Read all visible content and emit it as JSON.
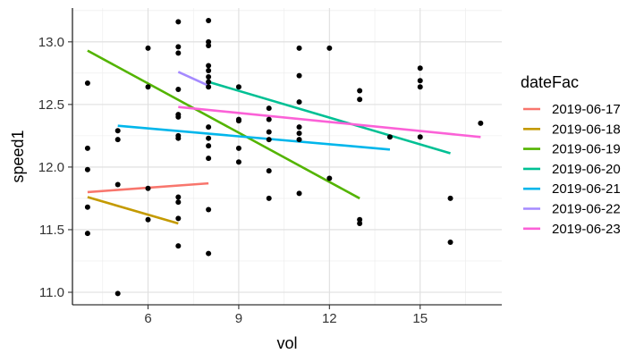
{
  "chart_data": {
    "type": "scatter",
    "xlabel": "vol",
    "ylabel": "speed1",
    "xlim": [
      3.5,
      17.7
    ],
    "ylim": [
      10.9,
      13.27
    ],
    "x_ticks": [
      6,
      9,
      12,
      15
    ],
    "y_ticks": [
      11.0,
      11.5,
      12.0,
      12.5,
      13.0
    ],
    "y_tick_labels": [
      "11.0",
      "11.5",
      "12.0",
      "12.5",
      "13.0"
    ],
    "grid": true,
    "legend": {
      "title": "dateFac",
      "position": "right"
    },
    "points": [
      {
        "x": 4,
        "y": 12.67
      },
      {
        "x": 4,
        "y": 12.15
      },
      {
        "x": 4,
        "y": 11.98
      },
      {
        "x": 4,
        "y": 11.68
      },
      {
        "x": 4,
        "y": 11.47
      },
      {
        "x": 5,
        "y": 12.29
      },
      {
        "x": 5,
        "y": 12.22
      },
      {
        "x": 5,
        "y": 11.86
      },
      {
        "x": 5,
        "y": 10.99
      },
      {
        "x": 6,
        "y": 12.95
      },
      {
        "x": 6,
        "y": 12.64
      },
      {
        "x": 6,
        "y": 11.83
      },
      {
        "x": 6,
        "y": 11.58
      },
      {
        "x": 7,
        "y": 13.16
      },
      {
        "x": 7,
        "y": 12.96
      },
      {
        "x": 7,
        "y": 12.91
      },
      {
        "x": 7,
        "y": 12.62
      },
      {
        "x": 7,
        "y": 12.42
      },
      {
        "x": 7,
        "y": 12.4
      },
      {
        "x": 7,
        "y": 12.25
      },
      {
        "x": 7,
        "y": 12.23
      },
      {
        "x": 7,
        "y": 11.76
      },
      {
        "x": 7,
        "y": 11.72
      },
      {
        "x": 7,
        "y": 11.59
      },
      {
        "x": 7,
        "y": 11.37
      },
      {
        "x": 8,
        "y": 13.17
      },
      {
        "x": 8,
        "y": 13.0
      },
      {
        "x": 8,
        "y": 12.97
      },
      {
        "x": 8,
        "y": 12.81
      },
      {
        "x": 8,
        "y": 12.77
      },
      {
        "x": 8,
        "y": 12.72
      },
      {
        "x": 8,
        "y": 12.68
      },
      {
        "x": 8,
        "y": 12.64
      },
      {
        "x": 8,
        "y": 12.32
      },
      {
        "x": 8,
        "y": 12.23
      },
      {
        "x": 8,
        "y": 12.17
      },
      {
        "x": 8,
        "y": 12.07
      },
      {
        "x": 8,
        "y": 11.66
      },
      {
        "x": 8,
        "y": 11.31
      },
      {
        "x": 9,
        "y": 12.64
      },
      {
        "x": 9,
        "y": 12.38
      },
      {
        "x": 9,
        "y": 12.37
      },
      {
        "x": 9,
        "y": 12.15
      },
      {
        "x": 9,
        "y": 12.04
      },
      {
        "x": 10,
        "y": 12.47
      },
      {
        "x": 10,
        "y": 12.38
      },
      {
        "x": 10,
        "y": 12.28
      },
      {
        "x": 10,
        "y": 12.22
      },
      {
        "x": 10,
        "y": 11.97
      },
      {
        "x": 10,
        "y": 11.75
      },
      {
        "x": 11,
        "y": 12.95
      },
      {
        "x": 11,
        "y": 12.73
      },
      {
        "x": 11,
        "y": 12.52
      },
      {
        "x": 11,
        "y": 12.32
      },
      {
        "x": 11,
        "y": 12.27
      },
      {
        "x": 11,
        "y": 12.22
      },
      {
        "x": 11,
        "y": 11.79
      },
      {
        "x": 12,
        "y": 12.95
      },
      {
        "x": 12,
        "y": 11.91
      },
      {
        "x": 13,
        "y": 12.61
      },
      {
        "x": 13,
        "y": 12.54
      },
      {
        "x": 13,
        "y": 11.58
      },
      {
        "x": 13,
        "y": 11.55
      },
      {
        "x": 14,
        "y": 12.24
      },
      {
        "x": 15,
        "y": 12.79
      },
      {
        "x": 15,
        "y": 12.69
      },
      {
        "x": 15,
        "y": 12.64
      },
      {
        "x": 15,
        "y": 12.24
      },
      {
        "x": 16,
        "y": 11.75
      },
      {
        "x": 16,
        "y": 11.4
      },
      {
        "x": 17,
        "y": 12.35
      }
    ],
    "series": [
      {
        "name": "2019-06-17",
        "color": "#F8766D",
        "x": [
          4,
          8
        ],
        "y": [
          11.8,
          11.87
        ]
      },
      {
        "name": "2019-06-18",
        "color": "#C49A00",
        "x": [
          4,
          7
        ],
        "y": [
          11.76,
          11.55
        ]
      },
      {
        "name": "2019-06-19",
        "color": "#53B400",
        "x": [
          4,
          13
        ],
        "y": [
          12.93,
          11.75
        ]
      },
      {
        "name": "2019-06-20",
        "color": "#00C094",
        "x": [
          8,
          16
        ],
        "y": [
          12.68,
          12.11
        ]
      },
      {
        "name": "2019-06-21",
        "color": "#00B6EB",
        "x": [
          5,
          14
        ],
        "y": [
          12.33,
          12.14
        ]
      },
      {
        "name": "2019-06-22",
        "color": "#A58AFF",
        "x": [
          7,
          8
        ],
        "y": [
          12.76,
          12.65
        ]
      },
      {
        "name": "2019-06-23",
        "color": "#FB61D7",
        "x": [
          7,
          17
        ],
        "y": [
          12.48,
          12.24
        ]
      }
    ]
  }
}
